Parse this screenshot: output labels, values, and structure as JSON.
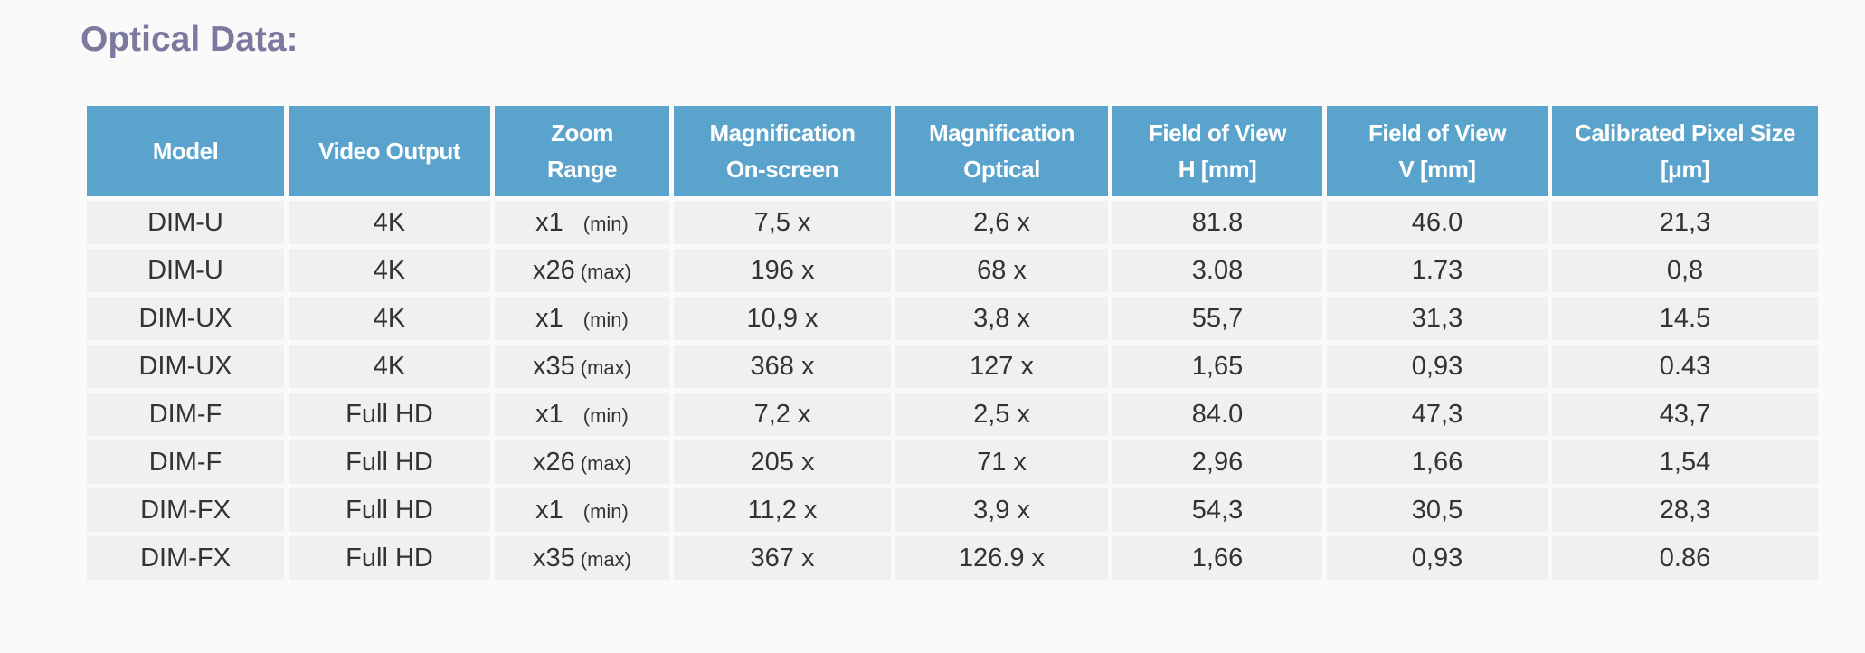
{
  "header": {
    "title": "Optical Data:"
  },
  "table": {
    "columns": [
      [
        "Model"
      ],
      [
        "Video Output"
      ],
      [
        "Zoom",
        "Range"
      ],
      [
        "Magnification",
        "On-screen"
      ],
      [
        "Magnification",
        "Optical"
      ],
      [
        "Field of View",
        "H [mm]"
      ],
      [
        "Field of View",
        "V [mm]"
      ],
      [
        "Calibrated Pixel Size",
        "[μm]"
      ]
    ],
    "rows": [
      [
        "DIM-U",
        "4K",
        {
          "factor": "x1",
          "range": "(min)"
        },
        "7,5 x",
        "2,6 x",
        "81.8",
        "46.0",
        "21,3"
      ],
      [
        "DIM-U",
        "4K",
        {
          "factor": "x26",
          "range": "(max)"
        },
        "196 x",
        "68 x",
        "3.08",
        "1.73",
        "0,8"
      ],
      [
        "DIM-UX",
        "4K",
        {
          "factor": "x1",
          "range": "(min)"
        },
        "10,9 x",
        "3,8 x",
        "55,7",
        "31,3",
        "14.5"
      ],
      [
        "DIM-UX",
        "4K",
        {
          "factor": "x35",
          "range": "(max)"
        },
        "368 x",
        "127 x",
        "1,65",
        "0,93",
        "0.43"
      ],
      [
        "DIM-F",
        "Full HD",
        {
          "factor": "x1",
          "range": "(min)"
        },
        "7,2 x",
        "2,5 x",
        "84.0",
        "47,3",
        "43,7"
      ],
      [
        "DIM-F",
        "Full HD",
        {
          "factor": "x26",
          "range": "(max)"
        },
        "205 x",
        "71 x",
        "2,96",
        "1,66",
        "1,54"
      ],
      [
        "DIM-FX",
        "Full HD",
        {
          "factor": "x1",
          "range": "(min)"
        },
        "11,2 x",
        "3,9 x",
        "54,3",
        "30,5",
        "28,3"
      ],
      [
        "DIM-FX",
        "Full HD",
        {
          "factor": "x35",
          "range": "(max)"
        },
        "367 x",
        "126.9 x",
        "1,66",
        "0,93",
        "0.86"
      ]
    ]
  }
}
